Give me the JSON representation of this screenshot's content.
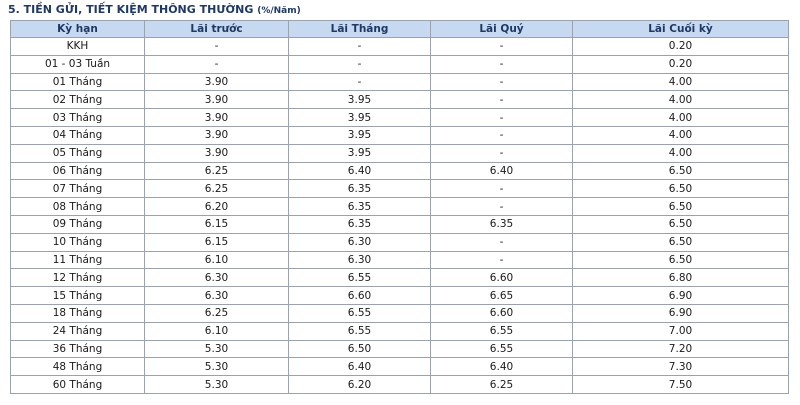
{
  "title": {
    "main": "5. TIỀN GỬI, TIẾT KIỆM THÔNG THƯỜNG",
    "unit": "(%/Năm)"
  },
  "table": {
    "header": [
      "Kỳ hạn",
      "Lãi trước",
      "Lãi Tháng",
      "Lãi Quý",
      "Lãi Cuối kỳ"
    ],
    "rows": [
      [
        "KKH",
        "-",
        "-",
        "-",
        "0.20"
      ],
      [
        "01 - 03 Tuần",
        "-",
        "-",
        "-",
        "0.20"
      ],
      [
        "01 Tháng",
        "3.90",
        "-",
        "-",
        "4.00"
      ],
      [
        "02 Tháng",
        "3.90",
        "3.95",
        "-",
        "4.00"
      ],
      [
        "03 Tháng",
        "3.90",
        "3.95",
        "-",
        "4.00"
      ],
      [
        "04 Tháng",
        "3.90",
        "3.95",
        "-",
        "4.00"
      ],
      [
        "05 Tháng",
        "3.90",
        "3.95",
        "-",
        "4.00"
      ],
      [
        "06 Tháng",
        "6.25",
        "6.40",
        "6.40",
        "6.50"
      ],
      [
        "07 Tháng",
        "6.25",
        "6.35",
        "-",
        "6.50"
      ],
      [
        "08 Tháng",
        "6.20",
        "6.35",
        "-",
        "6.50"
      ],
      [
        "09 Tháng",
        "6.15",
        "6.35",
        "6.35",
        "6.50"
      ],
      [
        "10 Tháng",
        "6.15",
        "6.30",
        "-",
        "6.50"
      ],
      [
        "11 Tháng",
        "6.10",
        "6.30",
        "-",
        "6.50"
      ],
      [
        "12 Tháng",
        "6.30",
        "6.55",
        "6.60",
        "6.80"
      ],
      [
        "15 Tháng",
        "6.30",
        "6.60",
        "6.65",
        "6.90"
      ],
      [
        "18 Tháng",
        "6.25",
        "6.55",
        "6.60",
        "6.90"
      ],
      [
        "24 Tháng",
        "6.10",
        "6.55",
        "6.55",
        "7.00"
      ],
      [
        "36 Tháng",
        "5.30",
        "6.50",
        "6.55",
        "7.20"
      ],
      [
        "48 Tháng",
        "5.30",
        "6.40",
        "6.40",
        "7.30"
      ],
      [
        "60 Tháng",
        "5.30",
        "6.20",
        "6.25",
        "7.50"
      ]
    ]
  }
}
